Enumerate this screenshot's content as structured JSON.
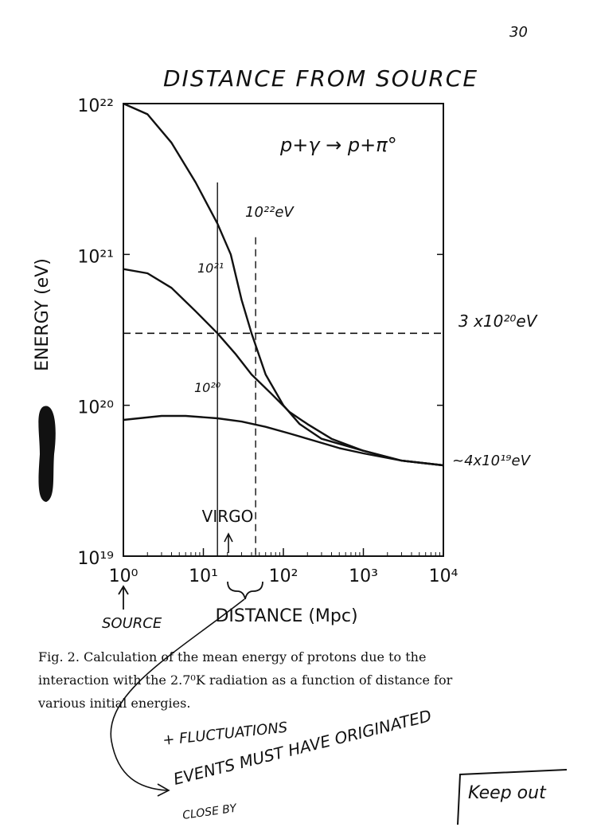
{
  "page_number": "30",
  "handwritten": {
    "chart_title": "DISTANCE FROM SOURCE",
    "reaction": "p+γ → p+π°",
    "curve_label_top": "10²²eV",
    "curve_label_mid": "10²¹",
    "curve_label_low": "10²⁰",
    "threshold_label": "3 x10²⁰eV",
    "asymptote_label": "~4x10¹⁹eV",
    "source_label": "SOURCE",
    "fluctuations": "+ FLUCTUATIONS",
    "events_must": "EVENTS MUST HAVE ORIGINATED",
    "close_by": "CLOSE BY",
    "keep_out": "Keep out"
  },
  "figure_caption": "Fig. 2. Calculation of the mean energy of protons due to the interaction with the 2.7⁰K radiation as a function of distance for various initial energies.",
  "chart_data": {
    "type": "line",
    "title": "",
    "xlabel": "DISTANCE (Mpc)",
    "ylabel": "ENERGY (eV)",
    "x_scale": "log",
    "y_scale": "log",
    "xlim": [
      1,
      10000
    ],
    "ylim": [
      1e+19,
      1e+22
    ],
    "x_ticks": [
      {
        "value": 1,
        "label": "10⁰"
      },
      {
        "value": 10,
        "label": "10¹"
      },
      {
        "value": 100,
        "label": "10²"
      },
      {
        "value": 1000,
        "label": "10³"
      },
      {
        "value": 10000,
        "label": "10⁴"
      }
    ],
    "y_ticks": [
      {
        "value": 1e+19,
        "label": "10¹⁹"
      },
      {
        "value": 1e+20,
        "label": "10²⁰"
      },
      {
        "value": 1e+21,
        "label": "10²¹"
      },
      {
        "value": 1e+22,
        "label": "10²²"
      }
    ],
    "annotations": {
      "virgo_label": "VIRGO",
      "virgo_x": 16
    },
    "reference_lines": [
      {
        "orientation": "horizontal",
        "value": 3e+20,
        "style": "dashed"
      },
      {
        "orientation": "vertical",
        "value": 15,
        "style": "solid"
      },
      {
        "orientation": "vertical",
        "value": 45,
        "style": "dashed"
      }
    ],
    "series": [
      {
        "name": "10²²eV",
        "points": [
          [
            1,
            1e+22
          ],
          [
            2,
            8.5e+21
          ],
          [
            4,
            5.5e+21
          ],
          [
            8,
            3e+21
          ],
          [
            15,
            1.6e+21
          ],
          [
            22,
            1e+21
          ],
          [
            30,
            5e+20
          ],
          [
            40,
            3e+20
          ],
          [
            60,
            1.6e+20
          ],
          [
            100,
            1e+20
          ],
          [
            160,
            7.5e+19
          ],
          [
            300,
            6e+19
          ],
          [
            1000,
            5e+19
          ],
          [
            3000,
            4.3e+19
          ],
          [
            10000,
            4e+19
          ]
        ]
      },
      {
        "name": "10²¹",
        "points": [
          [
            1,
            8e+20
          ],
          [
            2,
            7.5e+20
          ],
          [
            4,
            6e+20
          ],
          [
            8,
            4.2e+20
          ],
          [
            15,
            3e+20
          ],
          [
            25,
            2.2e+20
          ],
          [
            40,
            1.6e+20
          ],
          [
            70,
            1.2e+20
          ],
          [
            120,
            9e+19
          ],
          [
            200,
            7.5e+19
          ],
          [
            400,
            6e+19
          ],
          [
            1000,
            5e+19
          ],
          [
            3000,
            4.3e+19
          ],
          [
            10000,
            4e+19
          ]
        ]
      },
      {
        "name": "10²⁰",
        "points": [
          [
            1,
            8e+19
          ],
          [
            3,
            8.5e+19
          ],
          [
            6,
            8.5e+19
          ],
          [
            15,
            8.2e+19
          ],
          [
            30,
            7.8e+19
          ],
          [
            60,
            7.2e+19
          ],
          [
            120,
            6.5e+19
          ],
          [
            250,
            5.8e+19
          ],
          [
            500,
            5.2e+19
          ],
          [
            1000,
            4.8e+19
          ],
          [
            3000,
            4.3e+19
          ],
          [
            10000,
            4e+19
          ]
        ]
      }
    ],
    "grid": false
  }
}
